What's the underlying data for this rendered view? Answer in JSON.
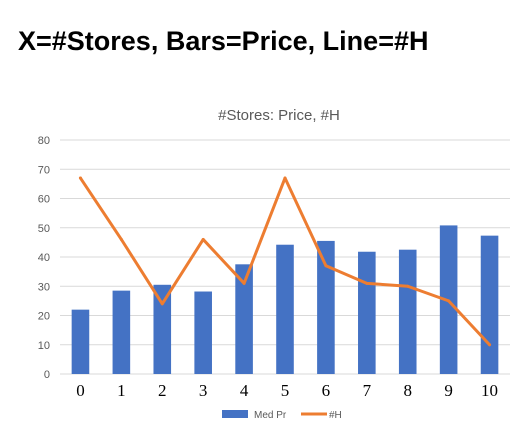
{
  "slide": {
    "title": "X=#Stores, Bars=Price, Line=#H"
  },
  "chart_data": {
    "type": "bar",
    "title": "#Stores: Price, #H",
    "xlabel": "",
    "ylabel": "",
    "categories": [
      "0",
      "1",
      "2",
      "3",
      "4",
      "5",
      "6",
      "7",
      "8",
      "9",
      "10"
    ],
    "ylim": [
      0,
      80
    ],
    "yticks": [
      0,
      10,
      20,
      30,
      40,
      50,
      60,
      70,
      80
    ],
    "grid": true,
    "legend_position": "bottom",
    "series": [
      {
        "name": "Med Pr",
        "type": "bar",
        "color": "#4472C4",
        "values": [
          22,
          28.5,
          30.5,
          28.2,
          37.5,
          44.2,
          45.5,
          41.8,
          42.5,
          50.8,
          47.3
        ]
      },
      {
        "name": "#H",
        "type": "line",
        "color": "#ED7D31",
        "values": [
          67,
          46,
          24,
          46,
          31,
          67,
          37,
          31,
          30,
          25,
          10
        ]
      }
    ]
  }
}
